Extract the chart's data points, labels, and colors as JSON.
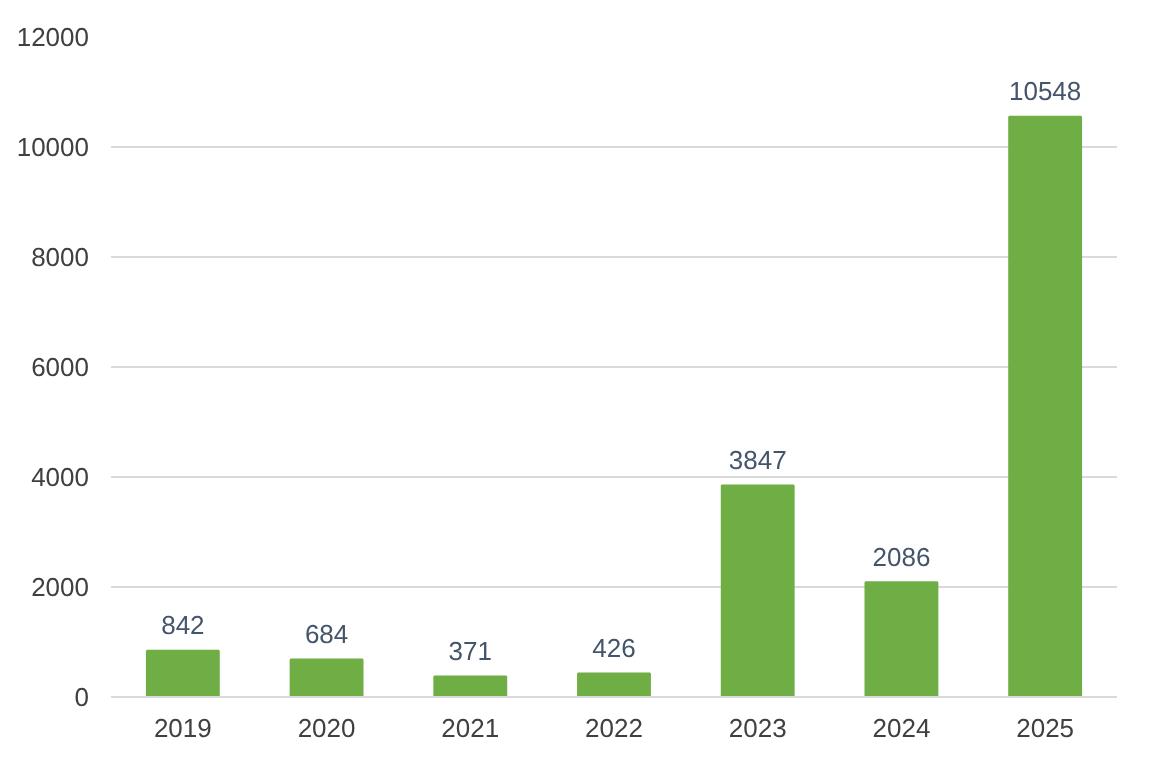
{
  "chart_data": {
    "type": "bar",
    "categories": [
      "2019",
      "2020",
      "2021",
      "2022",
      "2023",
      "2024",
      "2025"
    ],
    "values": [
      842,
      684,
      371,
      426,
      3847,
      2086,
      10548
    ],
    "color": "#6fae45",
    "ylim": [
      0,
      12000
    ],
    "yticks": [
      0,
      2000,
      4000,
      6000,
      8000,
      10000,
      12000
    ],
    "grid": "y",
    "data_labels": true
  }
}
